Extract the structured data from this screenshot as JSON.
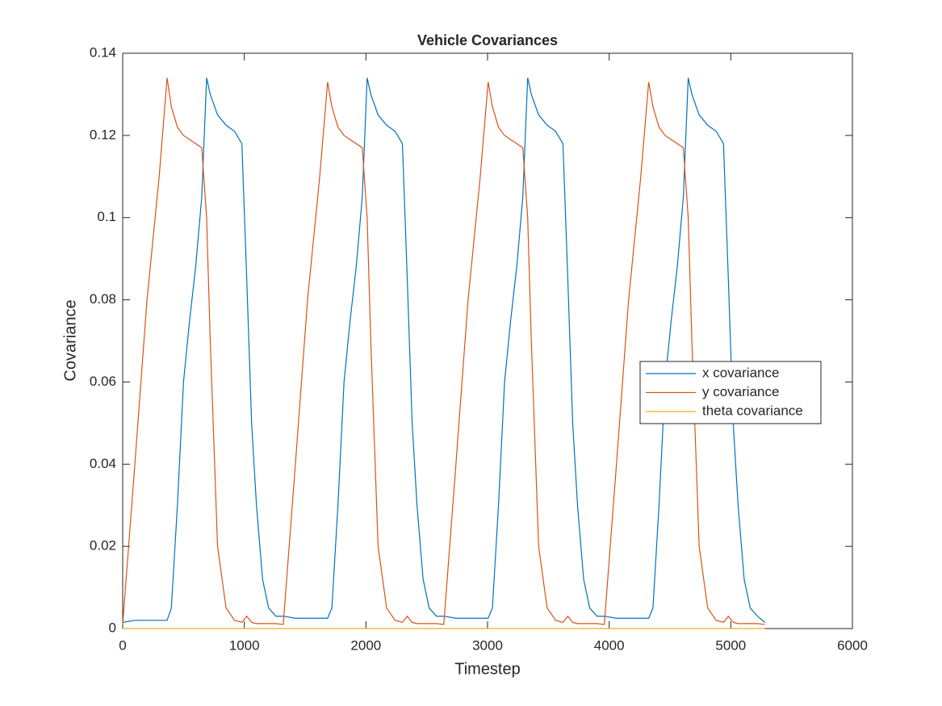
{
  "chart_data": {
    "type": "line",
    "title": "Vehicle Covariances",
    "x_label": "Timestep",
    "y_label": "Covariance",
    "x": [
      0,
      100,
      200,
      300,
      365,
      400,
      450,
      500,
      550,
      600,
      650,
      690,
      720,
      780,
      850,
      920,
      980,
      1020,
      1060,
      1100,
      1150,
      1200,
      1260,
      1320,
      1420,
      1520,
      1620,
      1685,
      1720,
      1770,
      1820,
      1870,
      1920,
      1970,
      2010,
      2040,
      2100,
      2170,
      2240,
      2300,
      2340,
      2380,
      2420,
      2470,
      2520,
      2580,
      2640,
      2740,
      2840,
      2940,
      3005,
      3040,
      3090,
      3140,
      3190,
      3240,
      3290,
      3330,
      3360,
      3420,
      3490,
      3560,
      3620,
      3660,
      3700,
      3740,
      3790,
      3840,
      3900,
      3960,
      4060,
      4160,
      4260,
      4325,
      4360,
      4410,
      4460,
      4510,
      4560,
      4610,
      4650,
      4680,
      4740,
      4810,
      4880,
      4940,
      4980,
      5020,
      5060,
      5110,
      5160,
      5220,
      5280
    ],
    "series": [
      {
        "name": "x covariance",
        "color": "#0072bd",
        "values": [
          0.0015,
          0.002,
          0.002,
          0.002,
          0.002,
          0.005,
          0.03,
          0.06,
          0.075,
          0.088,
          0.105,
          0.134,
          0.13,
          0.125,
          0.1225,
          0.121,
          0.118,
          0.085,
          0.05,
          0.03,
          0.012,
          0.005,
          0.003,
          0.003,
          0.0025,
          0.0025,
          0.0025,
          0.0025,
          0.005,
          0.03,
          0.06,
          0.075,
          0.088,
          0.105,
          0.134,
          0.13,
          0.125,
          0.1225,
          0.121,
          0.118,
          0.085,
          0.05,
          0.03,
          0.012,
          0.005,
          0.003,
          0.003,
          0.0025,
          0.0025,
          0.0025,
          0.0025,
          0.005,
          0.03,
          0.06,
          0.075,
          0.088,
          0.105,
          0.134,
          0.13,
          0.125,
          0.1225,
          0.121,
          0.118,
          0.085,
          0.05,
          0.03,
          0.012,
          0.005,
          0.003,
          0.003,
          0.0025,
          0.0025,
          0.0025,
          0.0025,
          0.005,
          0.03,
          0.06,
          0.075,
          0.088,
          0.105,
          0.134,
          0.13,
          0.125,
          0.1225,
          0.121,
          0.118,
          0.085,
          0.05,
          0.03,
          0.012,
          0.005,
          0.003,
          0.0015
        ]
      },
      {
        "name": "y covariance",
        "color": "#d95319",
        "values": [
          0.001,
          0.04,
          0.08,
          0.11,
          0.134,
          0.127,
          0.122,
          0.12,
          0.119,
          0.118,
          0.117,
          0.1,
          0.07,
          0.02,
          0.005,
          0.002,
          0.0015,
          0.003,
          0.0015,
          0.0012,
          0.0012,
          0.0012,
          0.0012,
          0.001,
          0.04,
          0.08,
          0.11,
          0.133,
          0.127,
          0.122,
          0.12,
          0.119,
          0.118,
          0.117,
          0.1,
          0.07,
          0.02,
          0.005,
          0.002,
          0.0015,
          0.003,
          0.0015,
          0.0012,
          0.0012,
          0.0012,
          0.0012,
          0.001,
          0.04,
          0.08,
          0.11,
          0.133,
          0.127,
          0.122,
          0.12,
          0.119,
          0.118,
          0.117,
          0.1,
          0.07,
          0.02,
          0.005,
          0.002,
          0.0015,
          0.003,
          0.0015,
          0.0012,
          0.0012,
          0.0012,
          0.0012,
          0.001,
          0.04,
          0.08,
          0.11,
          0.133,
          0.127,
          0.122,
          0.12,
          0.119,
          0.118,
          0.117,
          0.1,
          0.07,
          0.02,
          0.005,
          0.002,
          0.0015,
          0.003,
          0.0015,
          0.0012,
          0.0012,
          0.0012,
          0.0012,
          0.001
        ]
      },
      {
        "name": "theta covariance",
        "color": "#edb120",
        "values": [
          0,
          0,
          0,
          0,
          0,
          0,
          0,
          0,
          0,
          0,
          0,
          0,
          0,
          0,
          0,
          0,
          0,
          0,
          0,
          0,
          0,
          0,
          0,
          0,
          0,
          0,
          0,
          0,
          0,
          0,
          0,
          0,
          0,
          0,
          0,
          0,
          0,
          0,
          0,
          0,
          0,
          0,
          0,
          0,
          0,
          0,
          0,
          0,
          0,
          0,
          0,
          0,
          0,
          0,
          0,
          0,
          0,
          0,
          0,
          0,
          0,
          0,
          0,
          0,
          0,
          0,
          0,
          0,
          0,
          0,
          0,
          0,
          0,
          0,
          0,
          0,
          0,
          0,
          0,
          0,
          0,
          0,
          0,
          0,
          0,
          0,
          0,
          0,
          0,
          0,
          0,
          0,
          0
        ]
      }
    ],
    "xlim": [
      0,
      6000
    ],
    "xticks": [
      0,
      1000,
      2000,
      3000,
      4000,
      5000,
      6000
    ],
    "ylim": [
      0,
      0.14
    ],
    "yticks": [
      0,
      0.02,
      0.04,
      0.06,
      0.08,
      0.1,
      0.12,
      0.14
    ],
    "legend": "east",
    "grid": false
  }
}
